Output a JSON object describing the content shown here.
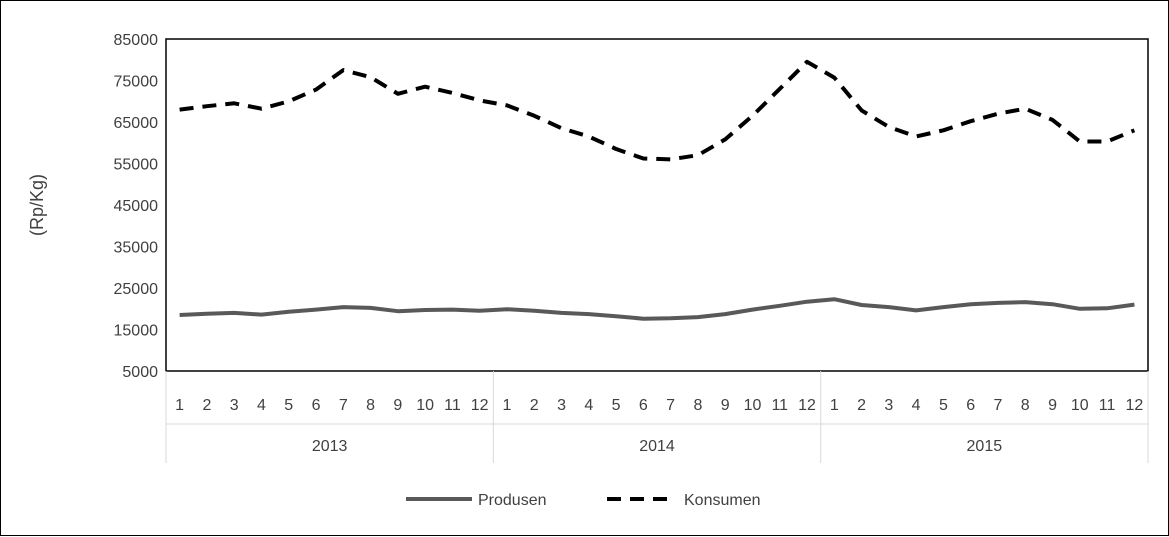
{
  "chart_data": {
    "type": "line",
    "title": "",
    "xlabel": "",
    "ylabel": "(Rp/Kg)",
    "ylim": [
      5000,
      85000
    ],
    "yticks": [
      5000,
      15000,
      25000,
      35000,
      45000,
      55000,
      65000,
      75000,
      85000
    ],
    "grid": false,
    "legend_position": "bottom",
    "groups": [
      {
        "label": "2013",
        "months": [
          "1",
          "2",
          "3",
          "4",
          "5",
          "6",
          "7",
          "8",
          "9",
          "10",
          "11",
          "12"
        ]
      },
      {
        "label": "2014",
        "months": [
          "1",
          "2",
          "3",
          "4",
          "5",
          "6",
          "7",
          "8",
          "9",
          "10",
          "11",
          "12"
        ]
      },
      {
        "label": "2015",
        "months": [
          "1",
          "2",
          "3",
          "4",
          "5",
          "6",
          "7",
          "8",
          "9",
          "10",
          "11",
          "12"
        ]
      }
    ],
    "series": [
      {
        "name": "Produsen",
        "color": "#595959",
        "style": "solid",
        "values": [
          18500,
          18800,
          19000,
          18600,
          19300,
          19800,
          20400,
          20200,
          19400,
          19700,
          19800,
          19500,
          19900,
          19500,
          19000,
          18700,
          18200,
          17600,
          17700,
          18000,
          18700,
          19800,
          20700,
          21700,
          22300,
          20900,
          20400,
          19600,
          20400,
          21100,
          21400,
          21600,
          21100,
          20000,
          20100,
          21000
        ]
      },
      {
        "name": "Konsumen",
        "color": "#000000",
        "style": "dashed",
        "values": [
          68000,
          68800,
          69500,
          68200,
          70000,
          72800,
          77500,
          75800,
          71800,
          73500,
          72000,
          70200,
          69000,
          66500,
          63500,
          61500,
          58500,
          56200,
          56000,
          57000,
          60800,
          66500,
          73000,
          79500,
          75700,
          67800,
          63800,
          61500,
          63000,
          65200,
          67000,
          68200,
          65500,
          60300,
          60300,
          63000
        ]
      }
    ]
  }
}
